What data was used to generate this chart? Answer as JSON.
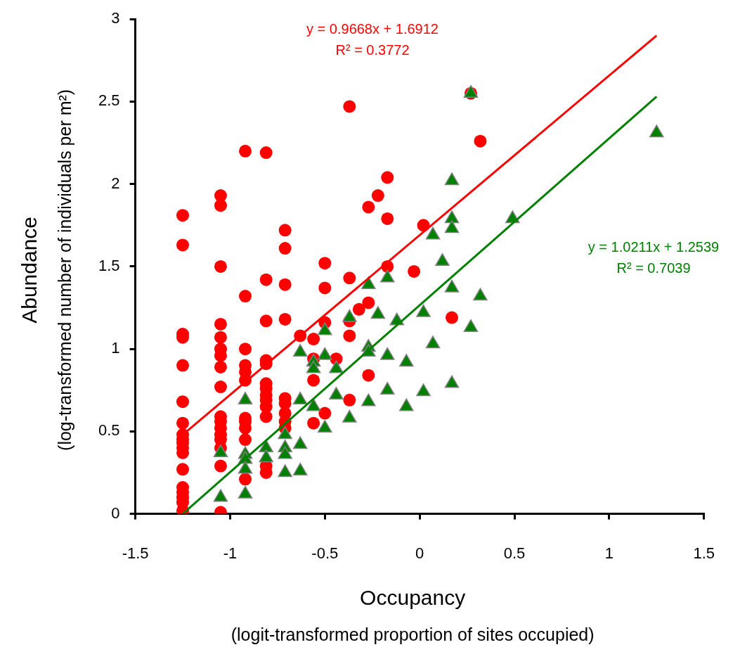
{
  "chart_data": {
    "type": "scatter",
    "xlabel": "Occupancy\n(logit-transformed proportion of sites occupied)",
    "ylabel": "Abundance\n(log-transformed number of individuals per m²)",
    "xlim": [
      -1.5,
      1.5
    ],
    "xticks": [
      -1.5,
      -1,
      -0.5,
      0,
      0.5,
      1,
      1.5
    ],
    "ylim": [
      0,
      3
    ],
    "yticks": [
      0,
      0.5,
      1,
      1.5,
      2,
      2.5,
      3
    ],
    "grid": false,
    "series": [
      {
        "color": "#ff0000",
        "marker": "circle",
        "x": [
          -1.25,
          -1.25,
          -1.25,
          -1.25,
          -1.25,
          -1.25,
          -1.25,
          -1.25,
          -1.25,
          -1.25,
          -1.25,
          -1.25,
          -1.25,
          -1.25,
          -1.25,
          -1.25,
          -1.25,
          -1.25,
          -1.05,
          -1.05,
          -1.05,
          -1.05,
          -1.05,
          -1.05,
          -1.05,
          -1.05,
          -1.05,
          -1.05,
          -1.05,
          -1.05,
          -1.05,
          -1.05,
          -1.05,
          -1.05,
          -1.05,
          -0.92,
          -0.92,
          -0.92,
          -0.92,
          -0.92,
          -0.92,
          -0.92,
          -0.92,
          -0.92,
          -0.92,
          -0.92,
          -0.81,
          -0.81,
          -0.81,
          -0.81,
          -0.81,
          -0.81,
          -0.81,
          -0.81,
          -0.81,
          -0.81,
          -0.81,
          -0.81,
          -0.81,
          -0.71,
          -0.71,
          -0.71,
          -0.71,
          -0.71,
          -0.71,
          -0.71,
          -0.71,
          -0.71,
          -0.63,
          -0.56,
          -0.56,
          -0.56,
          -0.56,
          -0.5,
          -0.5,
          -0.5,
          -0.5,
          -0.44,
          -0.37,
          -0.37,
          -0.37,
          -0.37,
          -0.37,
          -0.32,
          -0.27,
          -0.27,
          -0.27,
          -0.22,
          -0.17,
          -0.17,
          -0.17,
          -0.03,
          0.02,
          0.17,
          0.27,
          0.32
        ],
        "values": [
          1.81,
          1.63,
          1.09,
          1.07,
          0.9,
          0.68,
          0.55,
          0.48,
          0.45,
          0.43,
          0.4,
          0.37,
          0.27,
          0.16,
          0.13,
          0.1,
          0.07,
          0.02,
          1.93,
          1.87,
          1.5,
          1.15,
          1.07,
          1,
          0.96,
          0.89,
          0.77,
          0.59,
          0.56,
          0.52,
          0.48,
          0.45,
          0.4,
          0.29,
          0.01,
          2.2,
          1.32,
          1,
          0.9,
          0.86,
          0.81,
          0.58,
          0.56,
          0.52,
          0.45,
          0.21,
          2.19,
          1.42,
          1.17,
          0.93,
          0.91,
          0.79,
          0.76,
          0.72,
          0.69,
          0.65,
          0.59,
          0.29,
          0.25,
          1.72,
          1.61,
          1.39,
          1.18,
          0.7,
          0.67,
          0.61,
          0.56,
          0.52,
          1.08,
          1.06,
          0.94,
          0.81,
          0.55,
          1.52,
          1.37,
          1.16,
          0.61,
          0.94,
          2.47,
          1.43,
          1.17,
          1.08,
          0.69,
          1.24,
          1.86,
          1.28,
          0.84,
          1.93,
          2.04,
          1.79,
          1.5,
          1.47,
          1.75,
          1.19,
          2.55,
          2.26
        ]
      },
      {
        "color": "#008000",
        "marker": "triangle",
        "x": [
          -1.05,
          -1.05,
          -0.92,
          -0.92,
          -0.92,
          -0.92,
          -0.92,
          -0.81,
          -0.81,
          -0.71,
          -0.71,
          -0.71,
          -0.71,
          -0.63,
          -0.63,
          -0.63,
          -0.63,
          -0.56,
          -0.56,
          -0.56,
          -0.5,
          -0.5,
          -0.5,
          -0.44,
          -0.44,
          -0.37,
          -0.37,
          -0.27,
          -0.27,
          -0.27,
          -0.27,
          -0.22,
          -0.17,
          -0.17,
          -0.17,
          -0.12,
          -0.07,
          -0.07,
          0.02,
          0.02,
          0.07,
          0.07,
          0.12,
          0.17,
          0.17,
          0.17,
          0.17,
          0.17,
          0.27,
          0.27,
          0.32,
          0.49,
          1.25
        ],
        "values": [
          0.37,
          0.1,
          0.69,
          0.36,
          0.33,
          0.27,
          0.12,
          0.4,
          0.34,
          0.48,
          0.4,
          0.36,
          0.25,
          0.98,
          0.69,
          0.42,
          0.26,
          0.92,
          0.88,
          0.65,
          1.11,
          0.96,
          0.52,
          0.88,
          0.72,
          1.19,
          0.58,
          1.39,
          1.01,
          0.98,
          0.68,
          1.21,
          1.43,
          0.96,
          0.75,
          1.17,
          0.92,
          0.65,
          1.22,
          0.74,
          1.69,
          1.03,
          1.53,
          2.02,
          1.79,
          1.73,
          1.37,
          0.79,
          2.55,
          1.13,
          1.32,
          1.79,
          2.31
        ]
      },
      {
        "type": "line",
        "color": "#ff0000",
        "x": [
          -1.25,
          1.25
        ],
        "values": [
          0.48,
          2.9
        ]
      },
      {
        "type": "line",
        "color": "#008000",
        "x": [
          -1.25,
          1.25
        ],
        "values": [
          0,
          2.53
        ]
      }
    ],
    "annotations": [
      "y = 0.9668x + 1.6912",
      "R² = 0.3772",
      "y = 1.0211x + 1.2539",
      "R² = 0.7039"
    ]
  }
}
